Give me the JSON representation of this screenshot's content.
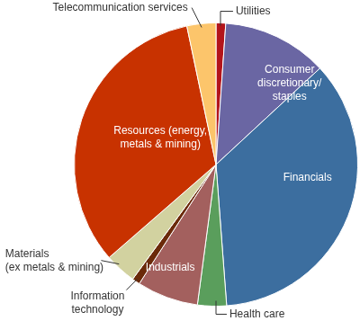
{
  "chart_data": {
    "type": "pie",
    "categories": [
      "Utilities",
      "Consumer discretionary/ staples",
      "Financials",
      "Health care",
      "Industrials",
      "Information technology",
      "Materials (ex metals & mining)",
      "Resources (energy, metals & mining)",
      "Telecommunication services"
    ],
    "values": [
      1.1,
      12,
      35.7,
      3.3,
      7,
      0.9,
      3.6,
      33.1,
      3.3
    ],
    "colors": [
      "#b3151b",
      "#6a66a3",
      "#3c6e9f",
      "#5a9e5c",
      "#a3605e",
      "#6b2a0a",
      "#d2d2a0",
      "#c83200",
      "#fcc56b"
    ]
  }
}
